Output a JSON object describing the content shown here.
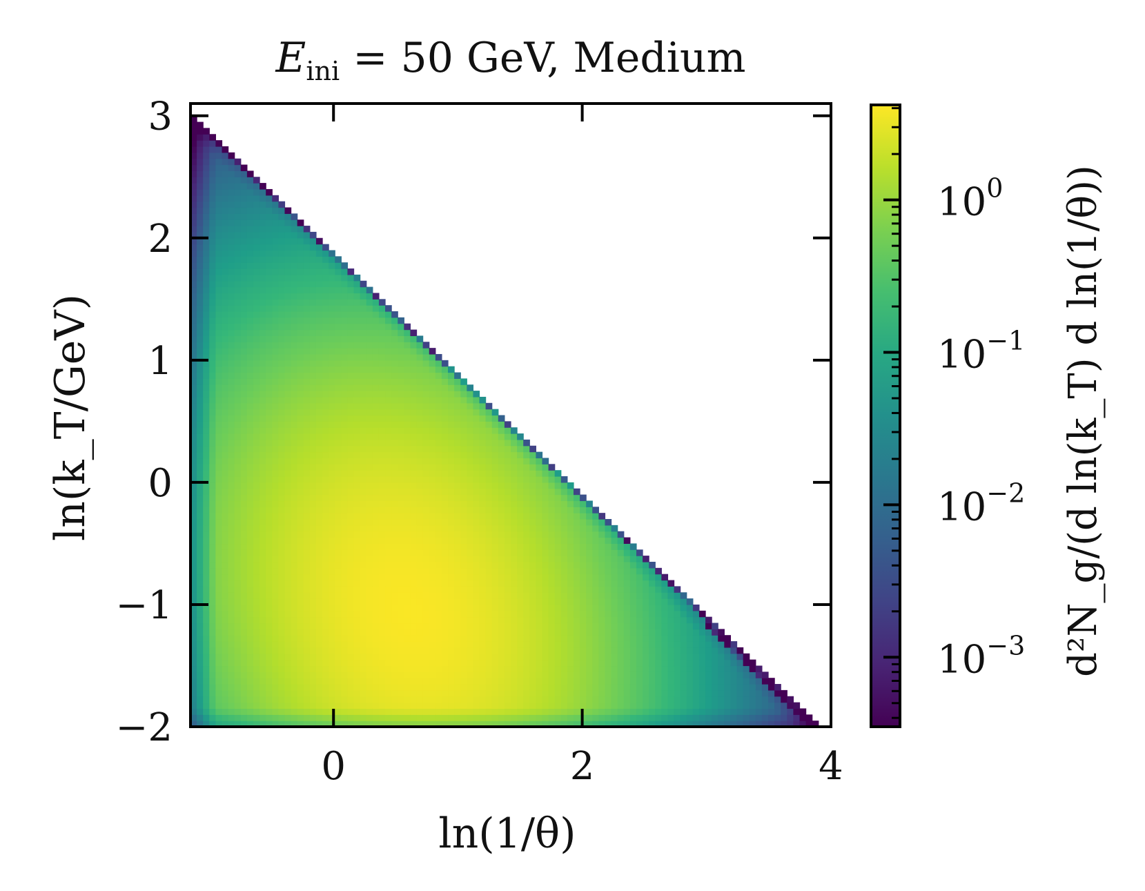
{
  "chart_data": {
    "type": "heatmap",
    "title": {
      "var": "E",
      "sub": "ini",
      "rest": " = 50 GeV,   Medium"
    },
    "xlabel": "ln(1/θ)",
    "ylabel": "ln(k_T/GeV)",
    "colorbar_label": "d²N_g/(d ln(k_T) d ln(1/θ))",
    "xlim": [
      -1.15,
      4.0
    ],
    "ylim": [
      -2.0,
      3.1
    ],
    "xticks": [
      {
        "v": 0,
        "label": "0"
      },
      {
        "v": 2,
        "label": "2"
      },
      {
        "v": 4,
        "label": "4"
      }
    ],
    "yticks": [
      {
        "v": 3,
        "label": "3"
      },
      {
        "v": 2,
        "label": "2"
      },
      {
        "v": 1,
        "label": "1"
      },
      {
        "v": 0,
        "label": "0"
      },
      {
        "v": -1,
        "label": "−1"
      },
      {
        "v": -2,
        "label": "−2"
      }
    ],
    "colorscale": "viridis",
    "log_color": true,
    "clim": [
      0.00035,
      4.2
    ],
    "cticks": [
      {
        "v": 1,
        "base": "10",
        "exp": "0"
      },
      {
        "v": 0.1,
        "base": "10",
        "exp": "−1"
      },
      {
        "v": 0.01,
        "base": "10",
        "exp": "−2"
      },
      {
        "v": 0.001,
        "base": "10",
        "exp": "−3"
      }
    ],
    "grid": false,
    "bins": {
      "nx": 102,
      "ny": 102
    },
    "boundary": "ln(k_T) + ln(1/θ) ≤ 1.9",
    "peak": {
      "x": 0.6,
      "y": -1.05,
      "value": 4.0
    }
  }
}
